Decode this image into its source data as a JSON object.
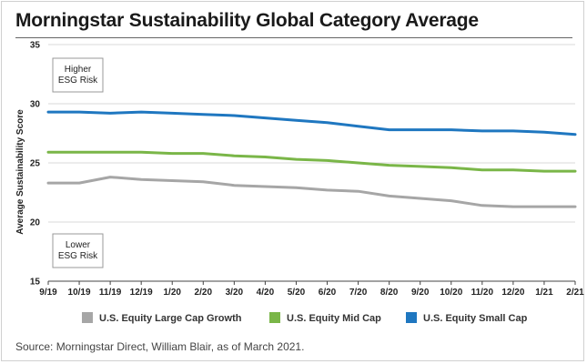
{
  "title": "Morningstar Sustainability Global Category Average",
  "source": "Source: Morningstar Direct, William Blair, as of March 2021.",
  "colors": {
    "large_cap_growth": "#a6a6a6",
    "mid_cap": "#7ab648",
    "small_cap": "#1f77c0"
  },
  "annotations": {
    "higher": [
      "Higher",
      "ESG Risk"
    ],
    "lower": [
      "Lower",
      "ESG Risk"
    ]
  },
  "chart_data": {
    "type": "line",
    "title": "Morningstar Sustainability Global Category Average",
    "xlabel": "",
    "ylabel": "Average Sustainability Score",
    "ylim": [
      15,
      35
    ],
    "yticks": [
      15,
      20,
      25,
      30,
      35
    ],
    "grid": "horizontal",
    "legend_position": "bottom",
    "x": [
      "9/19",
      "10/19",
      "11/19",
      "12/19",
      "1/20",
      "2/20",
      "3/20",
      "4/20",
      "5/20",
      "6/20",
      "7/20",
      "8/20",
      "9/20",
      "10/20",
      "11/20",
      "12/20",
      "1/21",
      "2/21"
    ],
    "series": [
      {
        "name": "U.S. Equity Large Cap Growth",
        "color": "#a6a6a6",
        "values": [
          23.3,
          23.3,
          23.8,
          23.6,
          23.5,
          23.4,
          23.1,
          23.0,
          22.9,
          22.7,
          22.6,
          22.2,
          22.0,
          21.8,
          21.4,
          21.3,
          21.3,
          21.3
        ]
      },
      {
        "name": "U.S. Equity Mid Cap",
        "color": "#7ab648",
        "values": [
          25.9,
          25.9,
          25.9,
          25.9,
          25.8,
          25.8,
          25.6,
          25.5,
          25.3,
          25.2,
          25.0,
          24.8,
          24.7,
          24.6,
          24.4,
          24.4,
          24.3,
          24.3
        ]
      },
      {
        "name": "U.S. Equity Small Cap",
        "color": "#1f77c0",
        "values": [
          29.3,
          29.3,
          29.2,
          29.3,
          29.2,
          29.1,
          29.0,
          28.8,
          28.6,
          28.4,
          28.1,
          27.8,
          27.8,
          27.8,
          27.7,
          27.7,
          27.6,
          27.4
        ]
      }
    ]
  }
}
